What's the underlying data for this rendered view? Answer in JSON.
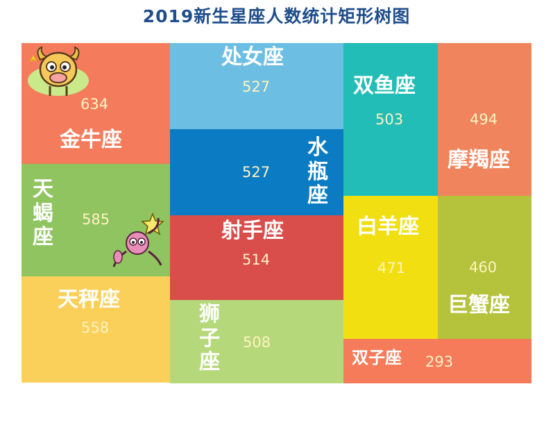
{
  "title": "2019新生星座人数统计矩形树图",
  "chart_data": {
    "type": "treemap",
    "title": "2019新生星座人数统计矩形树图",
    "items": [
      {
        "name": "金牛座",
        "value": 634,
        "color": "#f47c5c"
      },
      {
        "name": "天蝎座",
        "value": 585,
        "color": "#8fc460"
      },
      {
        "name": "天秤座",
        "value": 558,
        "color": "#fbd05a"
      },
      {
        "name": "处女座",
        "value": 527,
        "color": "#6cbfe2"
      },
      {
        "name": "水瓶座",
        "value": 527,
        "color": "#0b7cc3"
      },
      {
        "name": "射手座",
        "value": 514,
        "color": "#d94d4b"
      },
      {
        "name": "狮子座",
        "value": 508,
        "color": "#b5d97a"
      },
      {
        "name": "双鱼座",
        "value": 503,
        "color": "#22bdb7"
      },
      {
        "name": "摩羯座",
        "value": 494,
        "color": "#f0845c"
      },
      {
        "name": "白羊座",
        "value": 471,
        "color": "#f2df12"
      },
      {
        "name": "巨蟹座",
        "value": 460,
        "color": "#b4c23c"
      },
      {
        "name": "双子座",
        "value": 293,
        "color": "#f57b5a"
      }
    ]
  }
}
